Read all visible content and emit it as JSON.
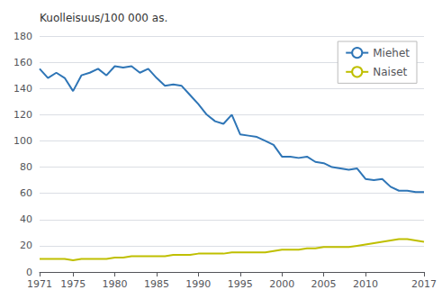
{
  "chart_data": {
    "type": "line",
    "ylabel": "Kuolleisuus/100 000 as.",
    "x": [
      1971,
      1972,
      1973,
      1974,
      1975,
      1976,
      1977,
      1978,
      1979,
      1980,
      1981,
      1982,
      1983,
      1984,
      1985,
      1986,
      1987,
      1988,
      1989,
      1990,
      1991,
      1992,
      1993,
      1994,
      1995,
      1996,
      1997,
      1998,
      1999,
      2000,
      2001,
      2002,
      2003,
      2004,
      2005,
      2006,
      2007,
      2008,
      2009,
      2010,
      2011,
      2012,
      2013,
      2014,
      2015,
      2016,
      2017
    ],
    "series": [
      {
        "name": "Miehet",
        "color": "#2E75B6",
        "values": [
          155,
          148,
          152,
          148,
          138,
          150,
          152,
          155,
          150,
          157,
          156,
          157,
          152,
          155,
          148,
          142,
          143,
          142,
          135,
          128,
          120,
          115,
          113,
          120,
          105,
          104,
          103,
          100,
          97,
          88,
          88,
          87,
          88,
          84,
          83,
          80,
          79,
          78,
          79,
          71,
          70,
          71,
          65,
          62,
          62,
          61,
          61
        ]
      },
      {
        "name": "Naiset",
        "color": "#BFBF00",
        "values": [
          10,
          10,
          10,
          10,
          9,
          10,
          10,
          10,
          10,
          11,
          11,
          12,
          12,
          12,
          12,
          12,
          13,
          13,
          13,
          14,
          14,
          14,
          14,
          15,
          15,
          15,
          15,
          15,
          16,
          17,
          17,
          17,
          18,
          18,
          19,
          19,
          19,
          19,
          20,
          21,
          22,
          23,
          24,
          25,
          25,
          24,
          23
        ]
      }
    ],
    "xlim": [
      1971,
      2017
    ],
    "xticks": [
      1971,
      1975,
      1980,
      1985,
      1990,
      1995,
      2000,
      2005,
      2010,
      2017
    ],
    "ylim": [
      0,
      180
    ],
    "yticks": [
      0,
      20,
      40,
      60,
      80,
      100,
      120,
      140,
      160,
      180
    ],
    "grid": true,
    "legend": "upper right"
  }
}
